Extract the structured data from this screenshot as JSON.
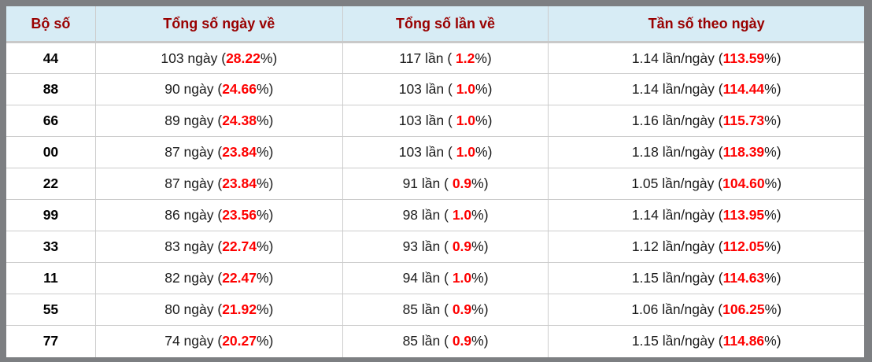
{
  "table": {
    "columns": [
      "Bộ số",
      "Tổng số ngày về",
      "Tổng số lần về",
      "Tần số theo ngày"
    ],
    "rows": [
      {
        "pair": "44",
        "days": {
          "prefix": "103 ngày (",
          "value": "28.22",
          "suffix": "%)"
        },
        "times": {
          "prefix": "117 lần ( ",
          "value": "1.2",
          "suffix": "%)"
        },
        "freq": {
          "prefix": "1.14 lần/ngày (",
          "value": "113.59",
          "suffix": "%)"
        }
      },
      {
        "pair": "88",
        "days": {
          "prefix": "90 ngày (",
          "value": "24.66",
          "suffix": "%)"
        },
        "times": {
          "prefix": "103 lần ( ",
          "value": "1.0",
          "suffix": "%)"
        },
        "freq": {
          "prefix": "1.14 lần/ngày (",
          "value": "114.44",
          "suffix": "%)"
        }
      },
      {
        "pair": "66",
        "days": {
          "prefix": "89 ngày (",
          "value": "24.38",
          "suffix": "%)"
        },
        "times": {
          "prefix": "103 lần ( ",
          "value": "1.0",
          "suffix": "%)"
        },
        "freq": {
          "prefix": "1.16 lần/ngày (",
          "value": "115.73",
          "suffix": "%)"
        }
      },
      {
        "pair": "00",
        "days": {
          "prefix": "87 ngày (",
          "value": "23.84",
          "suffix": "%)"
        },
        "times": {
          "prefix": "103 lần ( ",
          "value": "1.0",
          "suffix": "%)"
        },
        "freq": {
          "prefix": "1.18 lần/ngày (",
          "value": "118.39",
          "suffix": "%)"
        }
      },
      {
        "pair": "22",
        "days": {
          "prefix": "87 ngày (",
          "value": "23.84",
          "suffix": "%)"
        },
        "times": {
          "prefix": "91 lần ( ",
          "value": "0.9",
          "suffix": "%)"
        },
        "freq": {
          "prefix": "1.05 lần/ngày (",
          "value": "104.60",
          "suffix": "%)"
        }
      },
      {
        "pair": "99",
        "days": {
          "prefix": "86 ngày (",
          "value": "23.56",
          "suffix": "%)"
        },
        "times": {
          "prefix": "98 lần ( ",
          "value": "1.0",
          "suffix": "%)"
        },
        "freq": {
          "prefix": "1.14 lần/ngày (",
          "value": "113.95",
          "suffix": "%)"
        }
      },
      {
        "pair": "33",
        "days": {
          "prefix": "83 ngày (",
          "value": "22.74",
          "suffix": "%)"
        },
        "times": {
          "prefix": "93 lần ( ",
          "value": "0.9",
          "suffix": "%)"
        },
        "freq": {
          "prefix": "1.12 lần/ngày (",
          "value": "112.05",
          "suffix": "%)"
        }
      },
      {
        "pair": "11",
        "days": {
          "prefix": "82 ngày (",
          "value": "22.47",
          "suffix": "%)"
        },
        "times": {
          "prefix": "94 lần ( ",
          "value": "1.0",
          "suffix": "%)"
        },
        "freq": {
          "prefix": "1.15 lần/ngày (",
          "value": "114.63",
          "suffix": "%)"
        }
      },
      {
        "pair": "55",
        "days": {
          "prefix": "80 ngày (",
          "value": "21.92",
          "suffix": "%)"
        },
        "times": {
          "prefix": "85 lần ( ",
          "value": "0.9",
          "suffix": "%)"
        },
        "freq": {
          "prefix": "1.06 lần/ngày (",
          "value": "106.25",
          "suffix": "%)"
        }
      },
      {
        "pair": "77",
        "days": {
          "prefix": "74 ngày (",
          "value": "20.27",
          "suffix": "%)"
        },
        "times": {
          "prefix": "85 lần ( ",
          "value": "0.9",
          "suffix": "%)"
        },
        "freq": {
          "prefix": "1.15 lần/ngày (",
          "value": "114.86",
          "suffix": "%)"
        }
      }
    ]
  },
  "colors": {
    "header_bg": "#d7ecf5",
    "header_text": "#990000",
    "highlight": "#fe0000",
    "border_outer": "#7d7f82",
    "border_cell": "#cccccc"
  }
}
